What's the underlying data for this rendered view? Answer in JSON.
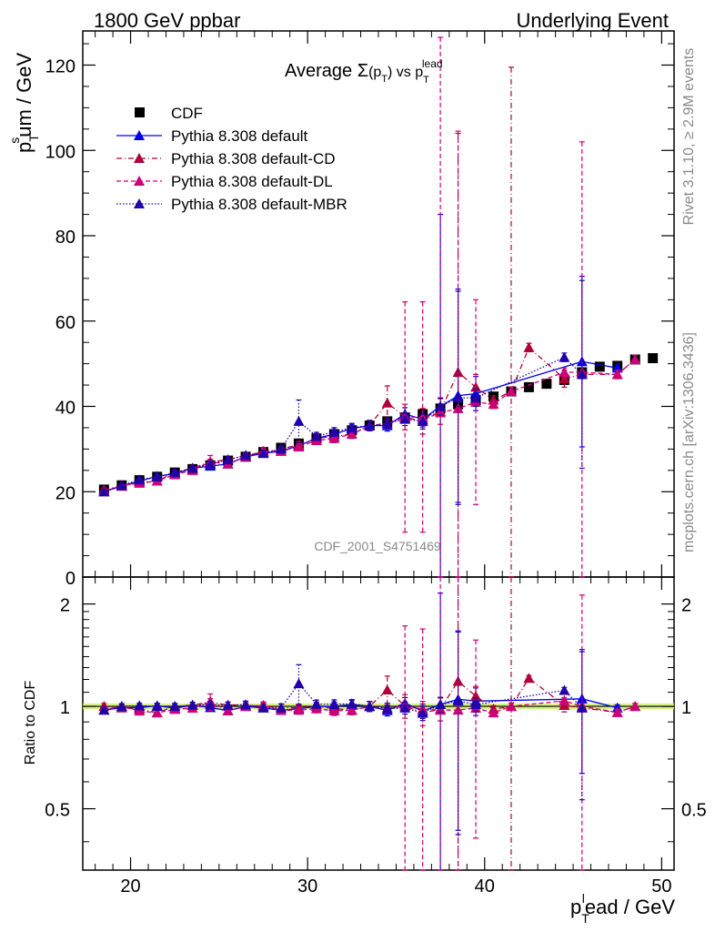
{
  "header": {
    "left": "1800 GeV ppbar",
    "right": "Underlying Event"
  },
  "side_labels": {
    "top": "Rivet 3.1.10, ≥ 2.9M events",
    "bottom": "mcplots.cern.ch [arXiv:1306.3436]"
  },
  "watermark": "CDF_2001_S4751469",
  "chart_data": [
    {
      "panel": "main",
      "type": "scatter",
      "title": "Average Σ(p_T) vs p_T^lead",
      "ylabel": "p_T^sum / GeV",
      "xlim": [
        17.3,
        50.7
      ],
      "ylim": [
        0,
        128
      ],
      "y_ticks": [
        "0",
        "20",
        "40",
        "60",
        "80",
        "100",
        "120"
      ],
      "x": [
        18.5,
        19.5,
        20.5,
        21.5,
        22.5,
        23.5,
        24.5,
        25.5,
        26.5,
        27.5,
        28.5,
        29.5,
        30.5,
        31.5,
        32.5,
        33.5,
        34.5,
        35.5,
        36.5,
        37.5,
        38.5,
        39.5,
        40.5,
        41.5,
        42.5,
        43.5,
        44.5,
        45.5,
        46.5,
        47.5,
        48.5,
        49.5
      ],
      "series": [
        {
          "name": "CDF",
          "color": "#000000",
          "marker": "square",
          "values": [
            20.5,
            21.5,
            22.7,
            23.5,
            24.5,
            25.3,
            26.2,
            27.3,
            28.2,
            29.3,
            30.3,
            31.3,
            32.5,
            33.5,
            34.4,
            35.5,
            36.5,
            37.4,
            38.2,
            39.5,
            40.5,
            41.5,
            42.3,
            43.5,
            44.5,
            45.3,
            46.2,
            48.0,
            49.3,
            49.5,
            51.0,
            51.3
          ]
        },
        {
          "name": "Pythia 8.308 default",
          "color": "#0000ee",
          "line": "solid",
          "values": [
            20.0,
            21.3,
            22.5,
            23.6,
            24.2,
            25.5,
            26.0,
            26.5,
            28.2,
            29.0,
            29.5,
            30.8,
            32.5,
            33.5,
            34.8,
            35.5,
            35.5,
            38.2,
            37.0,
            40.0,
            42.5,
            43.0,
            null,
            null,
            null,
            null,
            null,
            50.5,
            null,
            49.0,
            null,
            null
          ],
          "err": [
            0.4,
            0.4,
            0.4,
            0.4,
            0.5,
            0.5,
            0.6,
            0.6,
            0.7,
            0.7,
            0.8,
            0.8,
            0.9,
            1.0,
            1.0,
            1.2,
            1.3,
            1.5,
            1.8,
            45.0,
            25.0,
            4.0,
            0,
            0,
            0,
            0,
            0,
            20.0,
            0,
            1.0,
            0,
            0
          ]
        },
        {
          "name": "Pythia 8.308 default-CD",
          "color": "#b0003a",
          "line": "dashdot",
          "values": [
            20.5,
            21.3,
            22.3,
            22.5,
            24.5,
            25.5,
            27.0,
            27.5,
            28.5,
            29.3,
            30.0,
            31.0,
            32.5,
            33.0,
            33.5,
            35.5,
            40.8,
            37.5,
            36.5,
            38.8,
            48.0,
            44.5,
            41.5,
            43.5,
            53.8,
            null,
            46.5,
            47.5,
            null,
            47.5,
            51.0,
            null
          ],
          "err": [
            0.4,
            0.4,
            0.4,
            0.4,
            0.5,
            0.5,
            0.6,
            0.6,
            0.7,
            0.7,
            0.8,
            0.8,
            0.9,
            1.0,
            1.0,
            1.2,
            4.0,
            3.0,
            3.0,
            3.0,
            56.0,
            3.0,
            1.0,
            76.0,
            1.0,
            0,
            2.0,
            1.0,
            0,
            1.0,
            1.0,
            0
          ]
        },
        {
          "name": "Pythia 8.308 default-DL",
          "color": "#cc0077",
          "line": "dashed",
          "values": [
            20.0,
            21.5,
            22.0,
            22.5,
            24.0,
            25.0,
            27.0,
            26.5,
            28.2,
            29.5,
            29.5,
            30.5,
            32.0,
            32.5,
            33.5,
            35.5,
            36.0,
            37.5,
            37.5,
            38.5,
            39.5,
            41.0,
            40.5,
            43.5,
            null,
            null,
            48.0,
            48.0,
            null,
            47.5,
            51.0,
            null
          ],
          "err": [
            0.4,
            0.4,
            0.4,
            0.4,
            0.5,
            0.5,
            1.5,
            0.6,
            0.7,
            0.7,
            0.8,
            0.8,
            0.9,
            1.0,
            1.0,
            1.2,
            1.3,
            27.0,
            27.0,
            88.0,
            65.0,
            24.0,
            1.0,
            1.0,
            0,
            0,
            1.0,
            54.0,
            0,
            1.0,
            1.0,
            0
          ]
        },
        {
          "name": "Pythia 8.308 default-MBR",
          "color": "#2200aa",
          "line": "dotted",
          "values": [
            20.0,
            21.5,
            22.8,
            23.5,
            24.5,
            25.5,
            26.5,
            27.5,
            28.5,
            29.0,
            30.0,
            36.5,
            33.0,
            34.0,
            35.0,
            35.5,
            36.0,
            37.0,
            36.5,
            40.0,
            42.0,
            42.0,
            null,
            null,
            null,
            null,
            51.5,
            47.5,
            null,
            null,
            null,
            null
          ],
          "err": [
            0.4,
            0.4,
            0.4,
            0.4,
            0.5,
            0.5,
            0.6,
            0.6,
            0.7,
            0.7,
            0.8,
            5.0,
            0.9,
            1.0,
            1.0,
            1.2,
            1.3,
            1.5,
            1.8,
            2.0,
            25.0,
            2.0,
            0,
            0,
            0,
            0,
            1.0,
            22.0,
            0,
            0,
            0,
            0
          ]
        }
      ]
    },
    {
      "panel": "ratio",
      "type": "scatter",
      "ylabel": "Ratio to CDF",
      "xlabel": "p_T^lead / GeV",
      "ylog": true,
      "ylim": [
        0.33,
        2.4
      ],
      "y_ticks": [
        "0.5",
        "1",
        "2"
      ],
      "x_ticks": [
        "20",
        "30",
        "40",
        "50"
      ],
      "band": {
        "name": "CDF uncertainty",
        "color": "#ccee66"
      }
    }
  ]
}
